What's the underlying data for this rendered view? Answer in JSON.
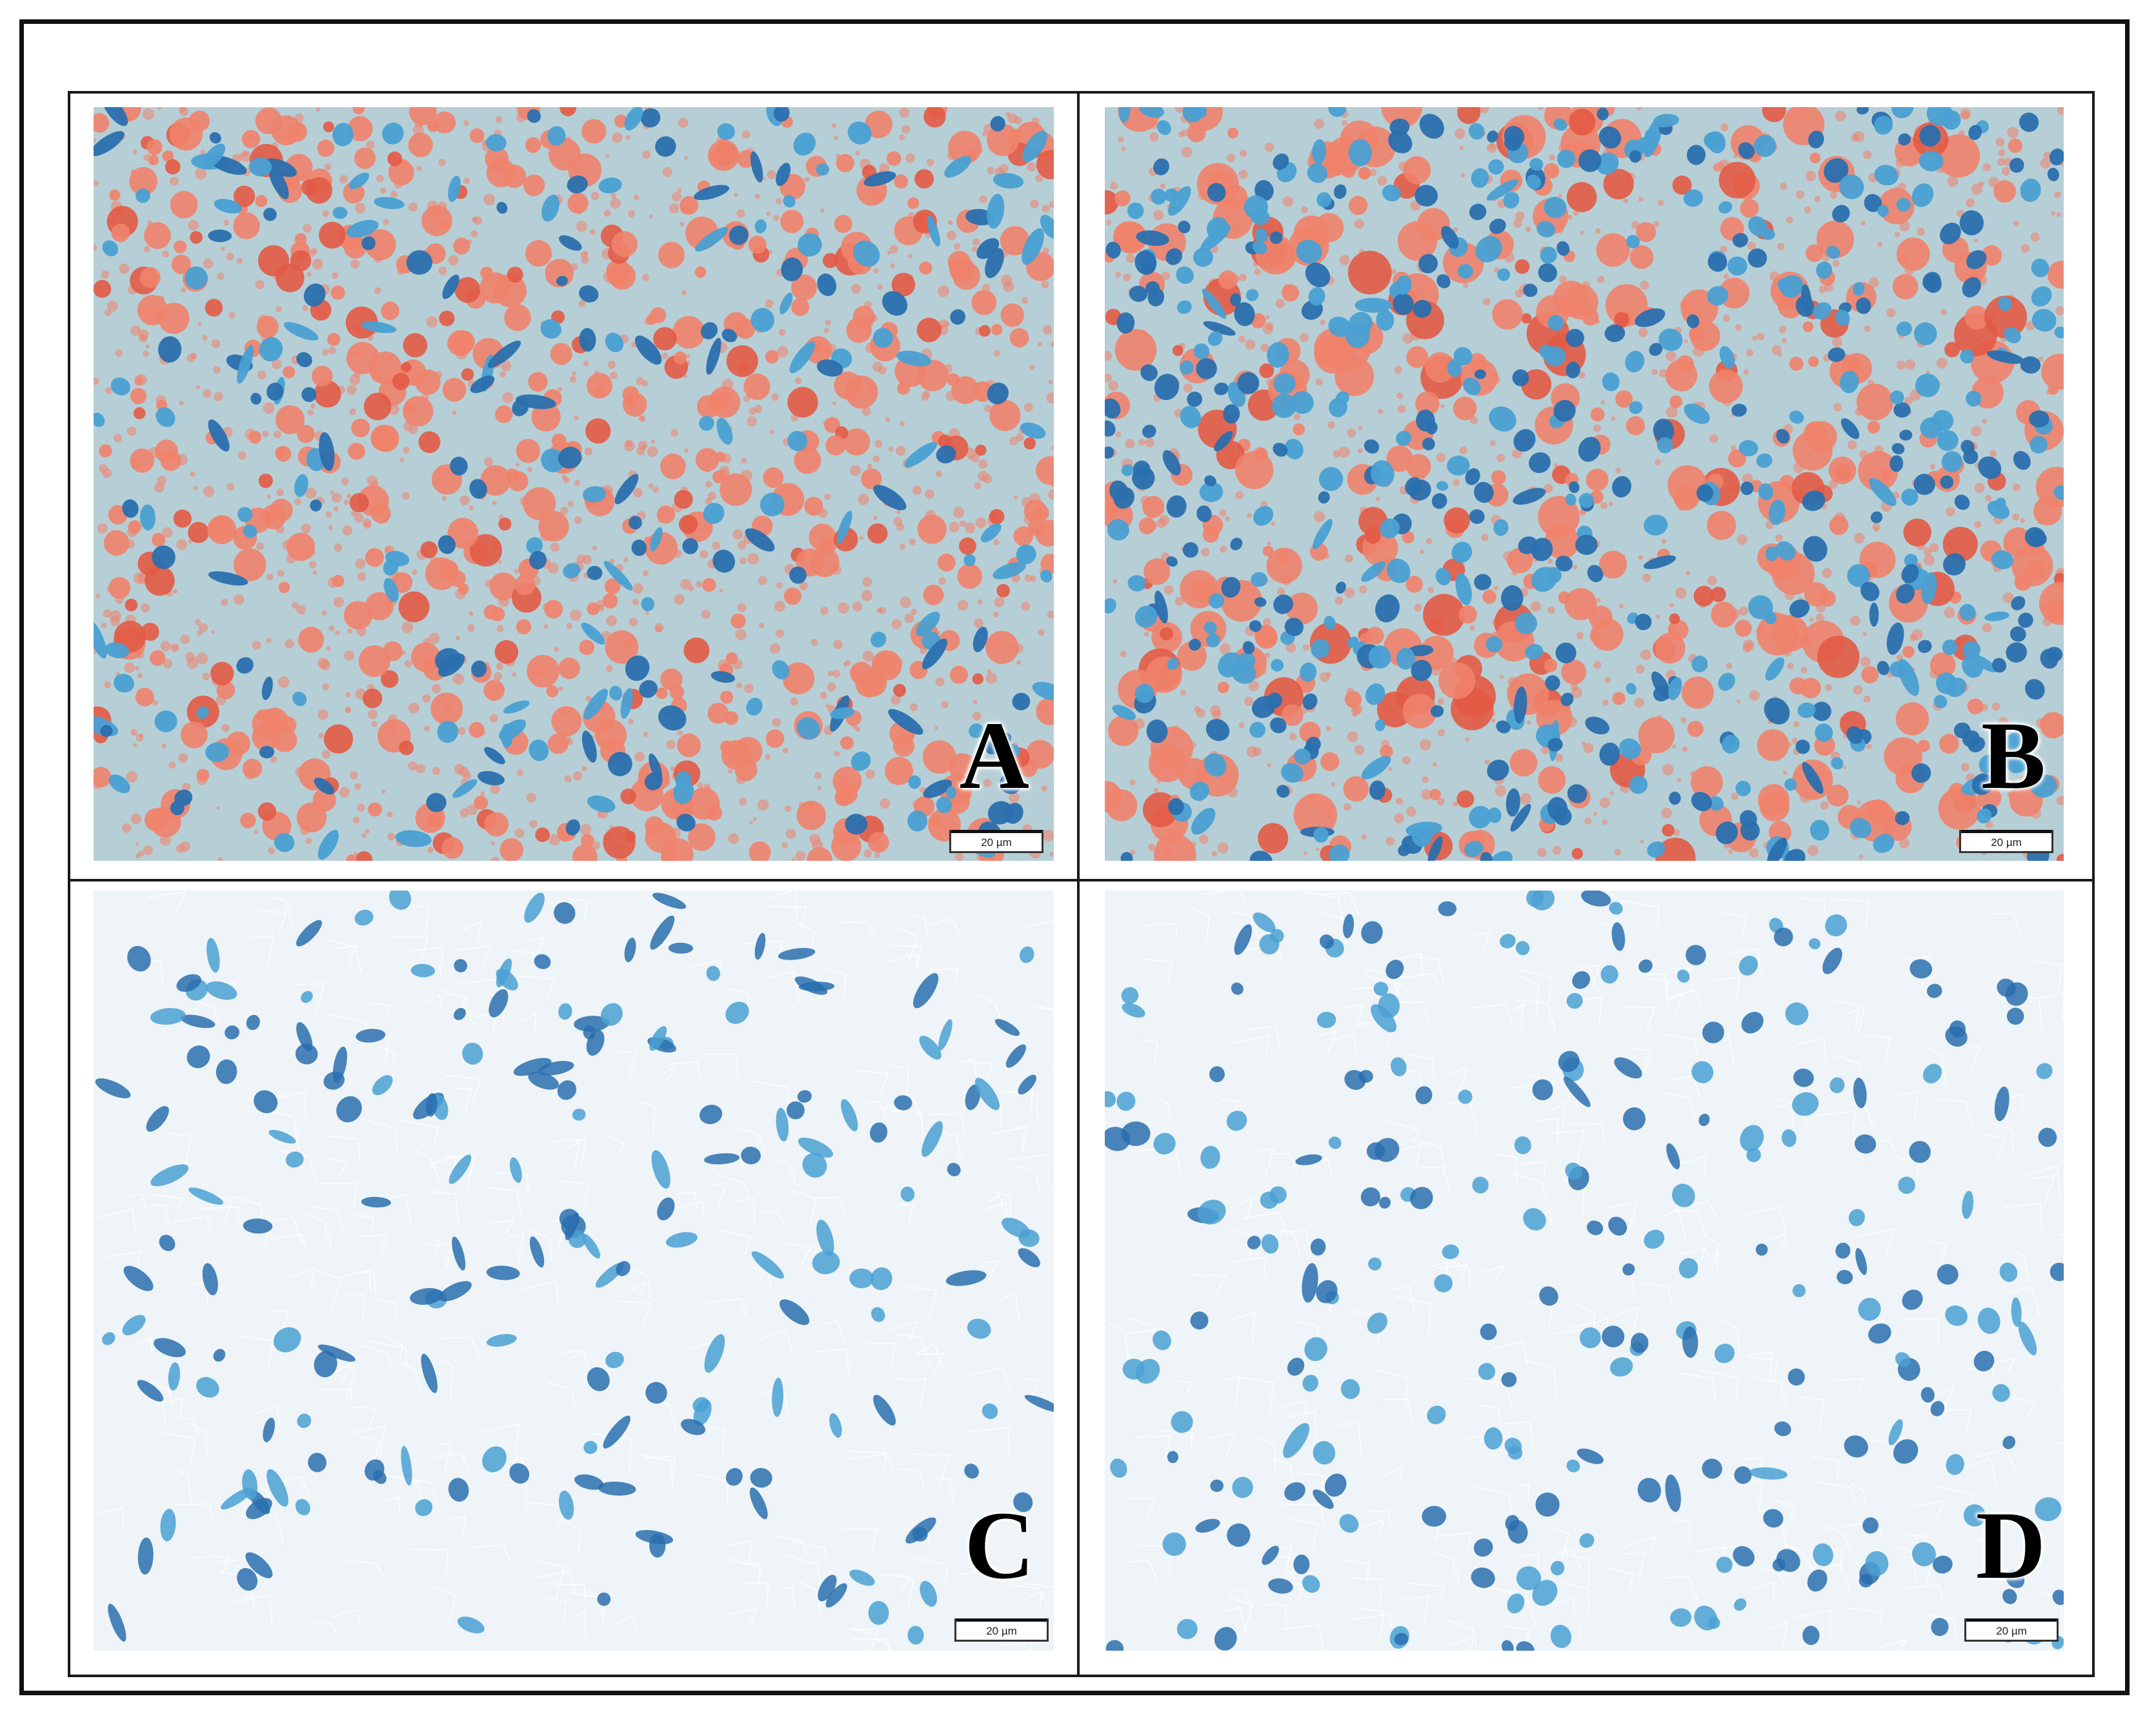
{
  "panels": [
    {
      "id": "A",
      "label": "A",
      "scale": "20 µm",
      "stain": "red-blue",
      "density": "high",
      "nucleiShape": "mixed"
    },
    {
      "id": "B",
      "label": "B",
      "scale": "20 µm",
      "stain": "red-blue",
      "density": "high",
      "nucleiShape": "round"
    },
    {
      "id": "C",
      "label": "C",
      "scale": "20 µm",
      "stain": "blue",
      "density": "low",
      "nucleiShape": "elongated"
    },
    {
      "id": "D",
      "label": "D",
      "scale": "20 µm",
      "stain": "blue",
      "density": "low",
      "nucleiShape": "round"
    }
  ],
  "colors": {
    "background_red_panels": "#b6cfd6",
    "background_blue_panels": "#eef4f7",
    "red_droplet": "#f0826c",
    "red_droplet_dark": "#e35a45",
    "nucleus_dark": "#2a6fae",
    "nucleus_light": "#4aa0d3"
  }
}
